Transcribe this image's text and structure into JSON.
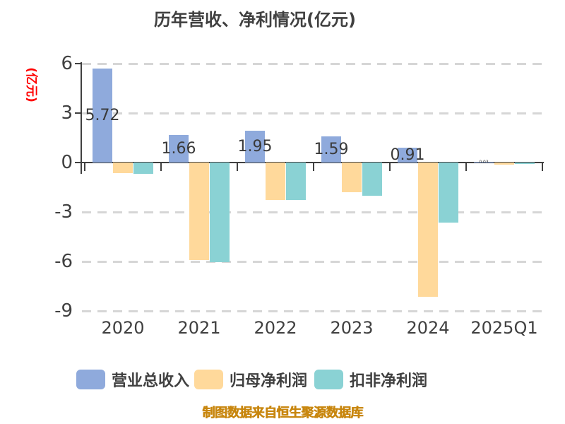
{
  "chart_data": {
    "type": "bar",
    "title": "历年营收、净利情况(亿元)",
    "y_axis_unit": "(亿元)",
    "categories": [
      "2020",
      "2021",
      "2022",
      "2023",
      "2024",
      "2025Q1"
    ],
    "series": [
      {
        "name": "营业总收入",
        "color": "#8FAADC",
        "values": [
          5.72,
          1.66,
          1.95,
          1.59,
          0.91,
          0.03
        ],
        "value_labels": [
          "5.72",
          "1.66",
          "1.95",
          "1.59",
          "0.91",
          "0.03"
        ]
      },
      {
        "name": "归母净利润",
        "color": "#FFD99B",
        "values": [
          -0.63,
          -5.91,
          -2.26,
          -1.79,
          -8.14,
          -0.13
        ]
      },
      {
        "name": "扣非净利润",
        "color": "#8AD2D4",
        "values": [
          -0.7,
          -6.04,
          -2.29,
          -2.03,
          -3.64,
          -0.09
        ]
      }
    ],
    "yticks": [
      6,
      3,
      0,
      -3,
      -6,
      -9
    ],
    "ylim": [
      -9,
      6
    ],
    "grid": "horizontal-dashed",
    "legend_position": "bottom"
  },
  "footer": "制图数据来自恒生聚源数据库",
  "colors": {
    "background": "#FFFFFF",
    "axis": "#404040",
    "grid": "#D6D6D6",
    "title": "#404040",
    "value_label": "#3A3A3A",
    "y_unit": "#FF0000",
    "footer": "#C8860E"
  }
}
